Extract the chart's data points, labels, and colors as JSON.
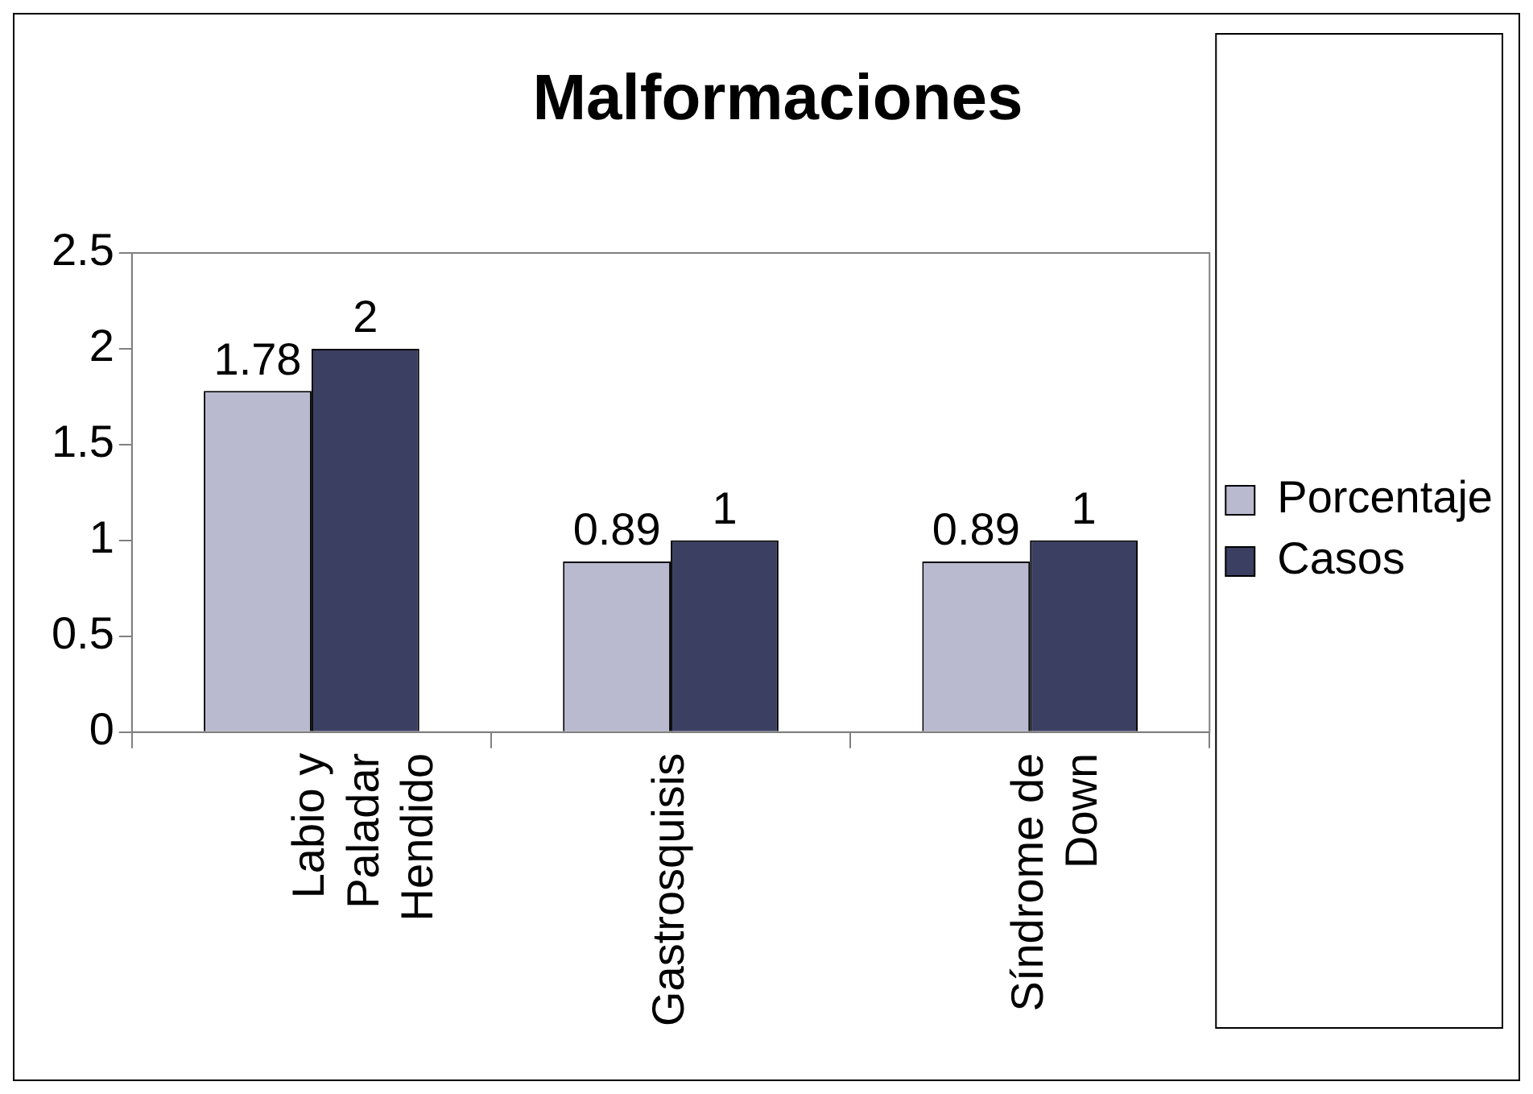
{
  "chart_data": {
    "type": "bar",
    "title": "Malformaciones",
    "categories": [
      "Labio y Paladar Hendido",
      "Gastrosquisis",
      "Síndrome de Down"
    ],
    "series": [
      {
        "name": "Porcentaje",
        "color": "#b9b9d0",
        "values": [
          1.78,
          0.89,
          0.89
        ]
      },
      {
        "name": "Casos",
        "color": "#3b3f62",
        "values": [
          2,
          1,
          1
        ]
      }
    ],
    "ylim": [
      0,
      2.5
    ],
    "yticks": [
      0,
      0.5,
      1,
      1.5,
      2,
      2.5
    ],
    "grid": false,
    "legend": "right",
    "data_labels": true
  }
}
